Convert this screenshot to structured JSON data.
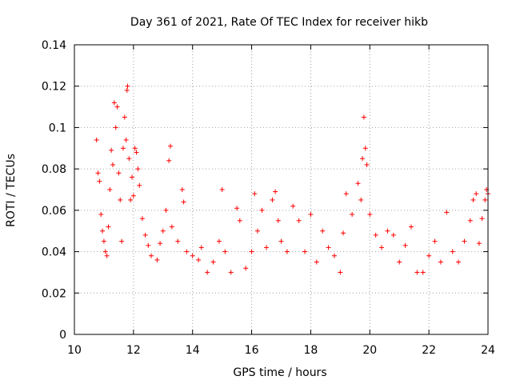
{
  "chart_data": {
    "type": "scatter",
    "title": "Day 361 of 2021, Rate Of TEC Index for receiver hikb",
    "xlabel": "GPS time / hours",
    "ylabel": "ROTI / TECUs",
    "xlim": [
      10,
      24
    ],
    "ylim": [
      0,
      0.14
    ],
    "x_ticks": [
      "10",
      "12",
      "14",
      "16",
      "18",
      "20",
      "22",
      "24"
    ],
    "y_ticks": [
      "0",
      "0.02",
      "0.04",
      "0.06",
      "0.08",
      "0.1",
      "0.12",
      "0.14"
    ],
    "grid": true,
    "marker": "+",
    "series_color": "#ff0000",
    "series": [
      {
        "name": "ROTI",
        "points": [
          [
            10.75,
            0.094
          ],
          [
            10.8,
            0.078
          ],
          [
            10.85,
            0.074
          ],
          [
            10.9,
            0.058
          ],
          [
            10.95,
            0.05
          ],
          [
            11.0,
            0.045
          ],
          [
            11.05,
            0.04
          ],
          [
            11.1,
            0.038
          ],
          [
            11.15,
            0.052
          ],
          [
            11.2,
            0.07
          ],
          [
            11.25,
            0.089
          ],
          [
            11.3,
            0.082
          ],
          [
            11.35,
            0.112
          ],
          [
            11.4,
            0.1
          ],
          [
            11.45,
            0.11
          ],
          [
            11.5,
            0.078
          ],
          [
            11.55,
            0.065
          ],
          [
            11.6,
            0.045
          ],
          [
            11.65,
            0.09
          ],
          [
            11.7,
            0.105
          ],
          [
            11.75,
            0.094
          ],
          [
            11.78,
            0.118
          ],
          [
            11.8,
            0.12
          ],
          [
            11.85,
            0.085
          ],
          [
            11.9,
            0.065
          ],
          [
            11.95,
            0.076
          ],
          [
            12.0,
            0.067
          ],
          [
            12.05,
            0.09
          ],
          [
            12.1,
            0.088
          ],
          [
            12.15,
            0.08
          ],
          [
            12.2,
            0.072
          ],
          [
            12.3,
            0.056
          ],
          [
            12.4,
            0.048
          ],
          [
            12.5,
            0.043
          ],
          [
            12.6,
            0.038
          ],
          [
            12.8,
            0.036
          ],
          [
            12.9,
            0.044
          ],
          [
            13.0,
            0.05
          ],
          [
            13.1,
            0.06
          ],
          [
            13.2,
            0.084
          ],
          [
            13.25,
            0.091
          ],
          [
            13.3,
            0.052
          ],
          [
            13.5,
            0.045
          ],
          [
            13.65,
            0.07
          ],
          [
            13.7,
            0.064
          ],
          [
            13.8,
            0.04
          ],
          [
            14.0,
            0.038
          ],
          [
            14.2,
            0.036
          ],
          [
            14.3,
            0.042
          ],
          [
            14.5,
            0.03
          ],
          [
            14.7,
            0.035
          ],
          [
            14.9,
            0.045
          ],
          [
            15.0,
            0.07
          ],
          [
            15.1,
            0.04
          ],
          [
            15.3,
            0.03
          ],
          [
            15.5,
            0.061
          ],
          [
            15.6,
            0.055
          ],
          [
            15.8,
            0.032
          ],
          [
            16.0,
            0.04
          ],
          [
            16.1,
            0.068
          ],
          [
            16.2,
            0.05
          ],
          [
            16.35,
            0.06
          ],
          [
            16.5,
            0.042
          ],
          [
            16.7,
            0.065
          ],
          [
            16.8,
            0.069
          ],
          [
            16.9,
            0.055
          ],
          [
            17.0,
            0.045
          ],
          [
            17.2,
            0.04
          ],
          [
            17.4,
            0.062
          ],
          [
            17.6,
            0.055
          ],
          [
            17.8,
            0.04
          ],
          [
            18.0,
            0.058
          ],
          [
            18.2,
            0.035
          ],
          [
            18.4,
            0.05
          ],
          [
            18.6,
            0.042
          ],
          [
            18.8,
            0.038
          ],
          [
            19.0,
            0.03
          ],
          [
            19.1,
            0.049
          ],
          [
            19.2,
            0.068
          ],
          [
            19.4,
            0.058
          ],
          [
            19.6,
            0.073
          ],
          [
            19.7,
            0.065
          ],
          [
            19.75,
            0.085
          ],
          [
            19.8,
            0.105
          ],
          [
            19.85,
            0.09
          ],
          [
            19.9,
            0.082
          ],
          [
            20.0,
            0.058
          ],
          [
            20.2,
            0.048
          ],
          [
            20.4,
            0.042
          ],
          [
            20.6,
            0.05
          ],
          [
            20.8,
            0.048
          ],
          [
            21.0,
            0.035
          ],
          [
            21.2,
            0.043
          ],
          [
            21.4,
            0.052
          ],
          [
            21.6,
            0.03
          ],
          [
            21.8,
            0.03
          ],
          [
            22.0,
            0.038
          ],
          [
            22.2,
            0.045
          ],
          [
            22.4,
            0.035
          ],
          [
            22.6,
            0.059
          ],
          [
            22.8,
            0.04
          ],
          [
            23.0,
            0.035
          ],
          [
            23.2,
            0.045
          ],
          [
            23.4,
            0.055
          ],
          [
            23.5,
            0.065
          ],
          [
            23.6,
            0.068
          ],
          [
            23.7,
            0.044
          ],
          [
            23.8,
            0.056
          ],
          [
            23.9,
            0.065
          ],
          [
            23.95,
            0.07
          ],
          [
            24.0,
            0.068
          ]
        ]
      }
    ]
  }
}
